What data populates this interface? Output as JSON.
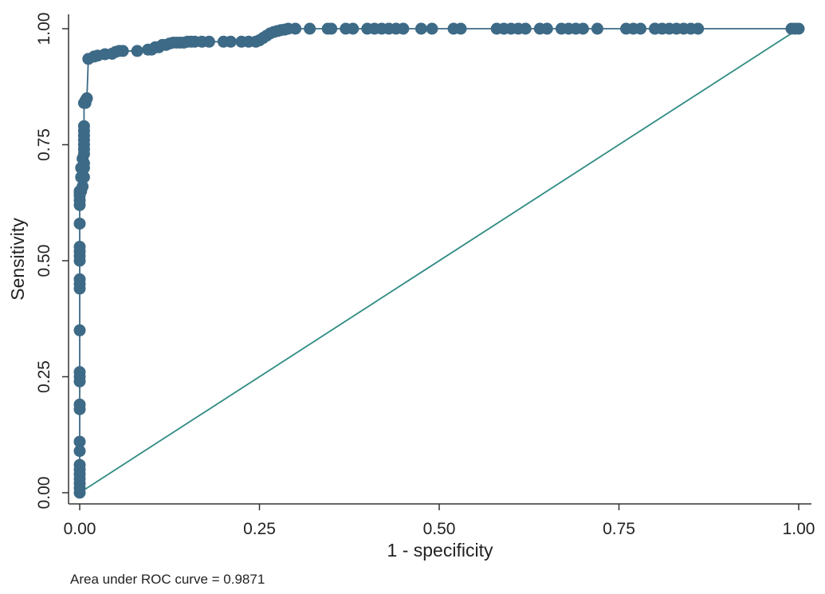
{
  "chart_data": {
    "type": "line",
    "title": "",
    "xlabel": "1 - specificity",
    "ylabel": "Sensitivity",
    "xlim": [
      0,
      1
    ],
    "ylim": [
      0,
      1
    ],
    "x_ticks": [
      "0.00",
      "0.25",
      "0.50",
      "0.75",
      "1.00"
    ],
    "y_ticks": [
      "0.00",
      "0.25",
      "0.50",
      "0.75",
      "1.00"
    ],
    "grid": false,
    "legend": "none",
    "annotation": "Area under ROC curve = 0.9871",
    "colors": {
      "roc": "#3d6a86",
      "reference": "#2e8b83",
      "axis": "#333333"
    },
    "series": [
      {
        "markers": true,
        "x": [
          0.0,
          0.0,
          0.0,
          0.0,
          0.0,
          0.0,
          0.0,
          0.0,
          0.0,
          0.0,
          0.0,
          0.0,
          0.0,
          0.0,
          0.0,
          0.0,
          0.0,
          0.0,
          0.0,
          0.0,
          0.0,
          0.0,
          0.0,
          0.0,
          0.0,
          0.0,
          0.0,
          0.0,
          0.002,
          0.002,
          0.002,
          0.004,
          0.004,
          0.006,
          0.006,
          0.006,
          0.006,
          0.006,
          0.006,
          0.006,
          0.006,
          0.006,
          0.006,
          0.006,
          0.008,
          0.008,
          0.01,
          0.012,
          0.02,
          0.025,
          0.035,
          0.045,
          0.05,
          0.055,
          0.06,
          0.08,
          0.095,
          0.1,
          0.105,
          0.11,
          0.115,
          0.12,
          0.125,
          0.13,
          0.135,
          0.14,
          0.145,
          0.15,
          0.155,
          0.16,
          0.17,
          0.18,
          0.2,
          0.21,
          0.225,
          0.235,
          0.245,
          0.25,
          0.255,
          0.26,
          0.265,
          0.27,
          0.275,
          0.28,
          0.285,
          0.29,
          0.3,
          0.32,
          0.345,
          0.35,
          0.37,
          0.38,
          0.4,
          0.41,
          0.42,
          0.43,
          0.44,
          0.45,
          0.475,
          0.49,
          0.52,
          0.53,
          0.58,
          0.59,
          0.6,
          0.61,
          0.62,
          0.64,
          0.65,
          0.67,
          0.68,
          0.69,
          0.7,
          0.72,
          0.76,
          0.77,
          0.78,
          0.8,
          0.8,
          0.81,
          0.82,
          0.83,
          0.84,
          0.85,
          0.86,
          0.99,
          0.995,
          1.0
        ],
        "y": [
          0.0,
          0.01,
          0.02,
          0.03,
          0.04,
          0.05,
          0.06,
          0.09,
          0.11,
          0.18,
          0.19,
          0.24,
          0.25,
          0.26,
          0.35,
          0.44,
          0.45,
          0.46,
          0.5,
          0.51,
          0.52,
          0.53,
          0.58,
          0.62,
          0.63,
          0.64,
          0.645,
          0.65,
          0.65,
          0.68,
          0.7,
          0.72,
          0.66,
          0.68,
          0.7,
          0.71,
          0.73,
          0.74,
          0.75,
          0.76,
          0.77,
          0.78,
          0.79,
          0.84,
          0.845,
          0.84,
          0.85,
          0.935,
          0.94,
          0.942,
          0.945,
          0.946,
          0.95,
          0.952,
          0.952,
          0.952,
          0.955,
          0.955,
          0.96,
          0.96,
          0.965,
          0.965,
          0.968,
          0.97,
          0.97,
          0.97,
          0.97,
          0.972,
          0.972,
          0.972,
          0.972,
          0.972,
          0.972,
          0.972,
          0.972,
          0.972,
          0.972,
          0.975,
          0.98,
          0.985,
          0.99,
          0.993,
          0.995,
          0.997,
          0.998,
          1.0,
          1.0,
          1.0,
          1.0,
          1.0,
          1.0,
          1.0,
          1.0,
          1.0,
          1.0,
          1.0,
          1.0,
          1.0,
          1.0,
          1.0,
          1.0,
          1.0,
          1.0,
          1.0,
          1.0,
          1.0,
          1.0,
          1.0,
          1.0,
          1.0,
          1.0,
          1.0,
          1.0,
          1.0,
          1.0,
          1.0,
          1.0,
          1.0,
          1.0,
          1.0,
          1.0,
          1.0,
          1.0,
          1.0,
          1.0,
          1.0,
          1.0,
          1.0
        ]
      },
      {
        "markers": false,
        "x": [
          0,
          1
        ],
        "y": [
          0,
          1
        ]
      }
    ]
  }
}
